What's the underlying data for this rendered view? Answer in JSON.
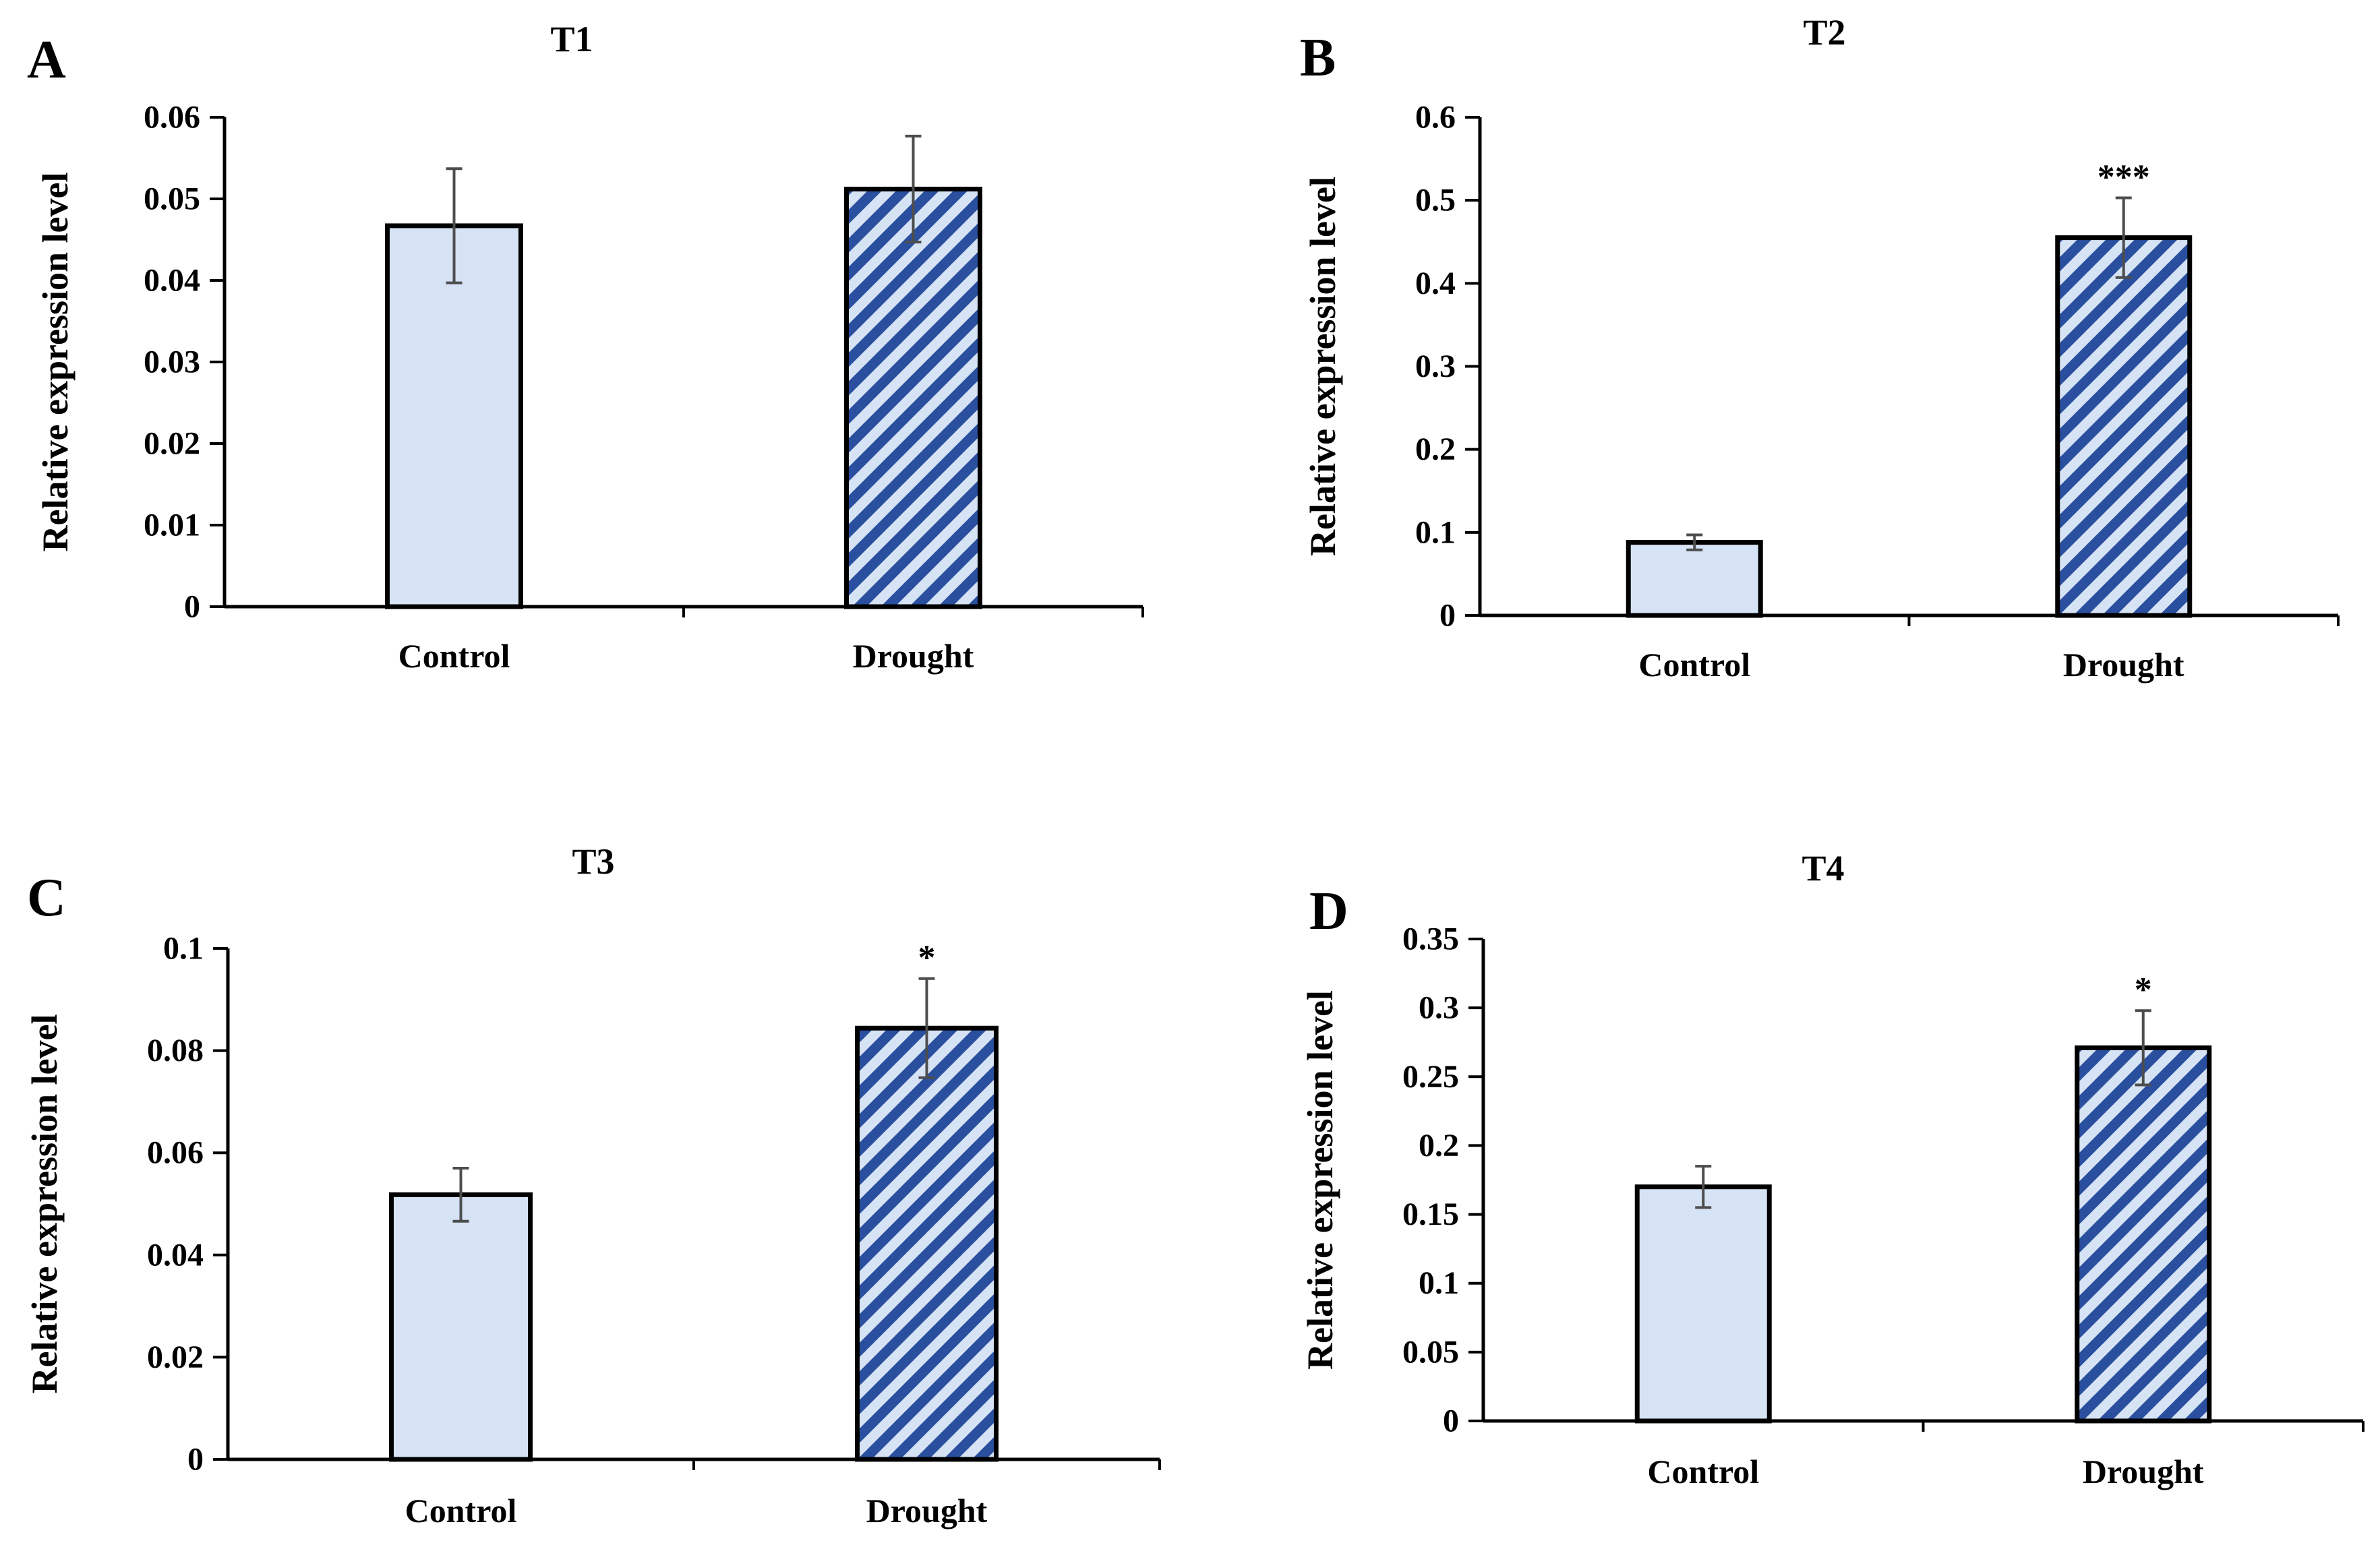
{
  "colors": {
    "control_fill": "#d6e3f5",
    "drought_stripe": "#2a4f9e",
    "drought_gap": "#d6e3f5",
    "axis": "#000000",
    "error_bar": "#4d4d4d"
  },
  "chart_data": [
    {
      "panel": "A",
      "type": "bar",
      "title": "T1",
      "xlabel": "",
      "ylabel": "Relative expression level",
      "categories": [
        "Control",
        "Drought"
      ],
      "values": [
        0.0467,
        0.0512
      ],
      "errors": [
        0.007,
        0.0065
      ],
      "significance": [
        "",
        ""
      ],
      "ylim": [
        0,
        0.06
      ],
      "yticks": [
        0,
        0.01,
        0.02,
        0.03,
        0.04,
        0.05,
        0.06
      ],
      "ytick_labels": [
        "0",
        "0.01",
        "0.02",
        "0.03",
        "0.04",
        "0.05",
        "0.06"
      ],
      "grid": false,
      "legend": "none"
    },
    {
      "panel": "B",
      "type": "bar",
      "title": "T2",
      "xlabel": "",
      "ylabel": "Relative expression level",
      "categories": [
        "Control",
        "Drought"
      ],
      "values": [
        0.088,
        0.455
      ],
      "errors": [
        0.009,
        0.048
      ],
      "significance": [
        "",
        "***"
      ],
      "ylim": [
        0,
        0.6
      ],
      "yticks": [
        0,
        0.1,
        0.2,
        0.3,
        0.4,
        0.5,
        0.6
      ],
      "ytick_labels": [
        "0",
        "0.1",
        "0.2",
        "0.3",
        "0.4",
        "0.5",
        "0.6"
      ],
      "grid": false,
      "legend": "none"
    },
    {
      "panel": "C",
      "type": "bar",
      "title": "T3",
      "xlabel": "",
      "ylabel": "Relative expression level",
      "categories": [
        "Control",
        "Drought"
      ],
      "values": [
        0.0518,
        0.0844
      ],
      "errors": [
        0.0052,
        0.0097
      ],
      "significance": [
        "",
        "*"
      ],
      "ylim": [
        0,
        0.1
      ],
      "yticks": [
        0,
        0.02,
        0.04,
        0.06,
        0.08,
        0.1
      ],
      "ytick_labels": [
        "0",
        "0.02",
        "0.04",
        "0.06",
        "0.08",
        "0.1"
      ],
      "grid": false,
      "legend": "none"
    },
    {
      "panel": "D",
      "type": "bar",
      "title": "T4",
      "xlabel": "",
      "ylabel": "Relative expression level",
      "categories": [
        "Control",
        "Drought"
      ],
      "values": [
        0.17,
        0.271
      ],
      "errors": [
        0.015,
        0.027
      ],
      "significance": [
        "",
        "*"
      ],
      "ylim": [
        0,
        0.35
      ],
      "yticks": [
        0,
        0.05,
        0.1,
        0.15,
        0.2,
        0.25,
        0.3,
        0.35
      ],
      "ytick_labels": [
        "0",
        "0.05",
        "0.1",
        "0.15",
        "0.2",
        "0.25",
        "0.3",
        "0.35"
      ],
      "grid": false,
      "legend": "none"
    }
  ]
}
